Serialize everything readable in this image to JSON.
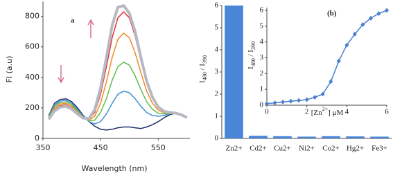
{
  "chart_data": [
    {
      "type": "line",
      "label": "a",
      "y_label": "FI (a.u)",
      "x_label": "Wavelength (nm)",
      "x": [
        360,
        370,
        380,
        390,
        400,
        410,
        420,
        430,
        440,
        450,
        460,
        470,
        480,
        490,
        500,
        510,
        520,
        530,
        540,
        550,
        560,
        570,
        580,
        590,
        600
      ],
      "series": [
        {
          "color": "#1f2f6b",
          "values": [
            150,
            230,
            255,
            260,
            240,
            200,
            150,
            110,
            80,
            60,
            55,
            60,
            70,
            75,
            75,
            70,
            65,
            75,
            90,
            110,
            135,
            155,
            165,
            160,
            140
          ]
        },
        {
          "color": "#3f8fd2",
          "values": [
            145,
            220,
            245,
            250,
            230,
            190,
            145,
            110,
            95,
            110,
            160,
            230,
            290,
            310,
            300,
            260,
            210,
            170,
            150,
            145,
            150,
            160,
            165,
            160,
            140
          ]
        },
        {
          "color": "#5cbf4a",
          "values": [
            140,
            210,
            235,
            240,
            220,
            180,
            140,
            115,
            120,
            170,
            260,
            380,
            470,
            500,
            480,
            410,
            320,
            240,
            190,
            165,
            160,
            162,
            165,
            158,
            140
          ]
        },
        {
          "color": "#f08a24",
          "values": [
            135,
            200,
            225,
            230,
            210,
            172,
            138,
            120,
            145,
            230,
            370,
            530,
            650,
            690,
            660,
            560,
            430,
            310,
            230,
            185,
            168,
            165,
            165,
            157,
            138
          ]
        },
        {
          "color": "#e0303a",
          "values": [
            130,
            190,
            215,
            220,
            200,
            165,
            135,
            125,
            170,
            290,
            470,
            660,
            790,
            830,
            790,
            670,
            510,
            360,
            260,
            200,
            175,
            168,
            166,
            156,
            137
          ]
        },
        {
          "color": "#b8b8c2",
          "values": [
            125,
            180,
            205,
            210,
            192,
            160,
            133,
            130,
            190,
            330,
            530,
            740,
            860,
            870,
            820,
            700,
            530,
            375,
            270,
            205,
            178,
            170,
            166,
            155,
            136
          ]
        }
      ],
      "xlim": [
        350,
        605
      ],
      "xticks": [
        350,
        450,
        550
      ],
      "ylim": [
        0,
        880
      ],
      "yticks": [
        0,
        200,
        400,
        600,
        800
      ]
    },
    {
      "type": "bar",
      "y_label": [
        "I",
        "480",
        " / I",
        "390"
      ],
      "categories": [
        "Zn2+",
        "Cd2+",
        "Cu2+",
        "Ni2+",
        "Co2+",
        "Hg2+",
        "Fe3+"
      ],
      "values": [
        6,
        0.12,
        0.1,
        0.08,
        0.1,
        0.09,
        0.08
      ],
      "color": "#4a86d8",
      "ylim": [
        0,
        6
      ],
      "yticks": [
        0,
        1,
        2,
        3,
        4,
        5,
        6
      ]
    },
    {
      "type": "line",
      "label": "(b)",
      "y_label": [
        "I",
        "480",
        " / I",
        "390"
      ],
      "x_label": [
        "[Zn",
        "2+",
        "] μM"
      ],
      "x": [
        0,
        0.4,
        0.8,
        1.2,
        1.6,
        2,
        2.4,
        2.8,
        3.2,
        3.6,
        4,
        4.4,
        4.8,
        5.2,
        5.6,
        6
      ],
      "series": [
        {
          "color": "#4a7fd0",
          "values": [
            0.1,
            0.15,
            0.2,
            0.25,
            0.3,
            0.35,
            0.5,
            0.7,
            1.5,
            2.8,
            3.8,
            4.5,
            5.1,
            5.5,
            5.8,
            6.0
          ]
        }
      ],
      "xlim": [
        0,
        6
      ],
      "xticks": [
        0,
        2,
        4,
        6
      ],
      "ylim": [
        0,
        6
      ],
      "yticks": [
        0,
        1,
        2,
        3,
        4,
        5,
        6
      ],
      "markers": true
    }
  ]
}
